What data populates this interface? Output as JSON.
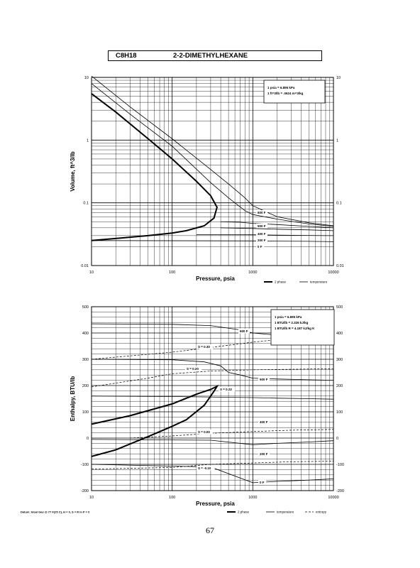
{
  "header": {
    "formula": "C8H18",
    "name": "2-2-DIMETHYLHEXANE"
  },
  "page_number": "67",
  "chart_data": [
    {
      "type": "line",
      "title": "",
      "xlabel": "Pressure,  psia",
      "ylabel": "Volume, ft^3/lb",
      "x_scale": "log",
      "y_scale": "log",
      "xlim": [
        10,
        10000
      ],
      "ylim": [
        0.01,
        10
      ],
      "grid": true,
      "x_ticks": [
        "10",
        "100",
        "1000",
        "10000"
      ],
      "y_ticks": [
        "10",
        "1",
        "0.1",
        "0.01"
      ],
      "y_ticks_right": [
        "10",
        "1",
        "0.1",
        "0.01"
      ],
      "conversion_box": [
        "1 psia  =  6.895 kPa",
        "1 ft^3/lb  =  .0624 m^3/kg"
      ],
      "legend": [
        "2 phase",
        "temperature"
      ],
      "series": [
        {
          "name": "2 phase",
          "kind": "two-phase",
          "x": [
            10,
            20,
            50,
            100,
            200,
            300,
            360,
            330,
            250,
            150,
            100,
            50,
            20,
            10
          ],
          "y": [
            5.5,
            2.8,
            1.06,
            0.5,
            0.22,
            0.13,
            0.085,
            0.057,
            0.043,
            0.036,
            0.033,
            0.03,
            0.027,
            0.025
          ]
        },
        {
          "name": "",
          "kind": "isotherm",
          "x": [
            10,
            30,
            100,
            300,
            500,
            800,
            1000,
            2000,
            5000,
            10000
          ],
          "y": [
            8,
            2.6,
            0.8,
            0.21,
            0.12,
            0.075,
            0.065,
            0.055,
            0.046,
            0.042
          ]
        },
        {
          "name": "600 F",
          "kind": "isotherm",
          "x": [
            10,
            30,
            100,
            300,
            500,
            800,
            1000,
            2000,
            5000,
            10000
          ],
          "y": [
            10.5,
            3.4,
            1.05,
            0.34,
            0.2,
            0.12,
            0.09,
            0.06,
            0.048,
            0.043
          ]
        },
        {
          "name": "500 F",
          "kind": "isotherm",
          "x": [
            400,
            700,
            1000,
            2000,
            5000,
            10000
          ],
          "y": [
            0.05,
            0.049,
            0.047,
            0.045,
            0.042,
            0.04
          ]
        },
        {
          "name": "400 F",
          "kind": "isotherm",
          "x": [
            400,
            1000,
            2000,
            5000,
            10000
          ],
          "y": [
            0.04,
            0.039,
            0.038,
            0.037,
            0.036
          ]
        },
        {
          "name": "200 F",
          "kind": "isotherm",
          "x": [
            200,
            1000,
            2000,
            5000,
            10000
          ],
          "y": [
            0.031,
            0.031,
            0.0305,
            0.0302,
            0.03
          ]
        },
        {
          "name": "0 F",
          "kind": "isotherm",
          "x": [
            10,
            1000,
            2000,
            5000,
            10000
          ],
          "y": [
            0.025,
            0.0247,
            0.0245,
            0.0243,
            0.024
          ]
        }
      ],
      "annotations": [
        "600 F",
        "500 F",
        "400 F",
        "200 F",
        "0 F"
      ]
    },
    {
      "type": "line",
      "title": "",
      "xlabel": "Pressure,  psia",
      "ylabel": "Enthalpy, BTU/lb",
      "x_scale": "log",
      "xlim": [
        10,
        10000
      ],
      "ylim": [
        -200,
        500
      ],
      "grid": true,
      "x_ticks": [
        "10",
        "100",
        "1000",
        "10000"
      ],
      "y_ticks": [
        "500",
        "400",
        "300",
        "200",
        "100",
        "0",
        "-100",
        "-200"
      ],
      "y_ticks_right": [
        "500",
        "400",
        "300",
        "200",
        "100",
        "0",
        "-100",
        "-200"
      ],
      "conversion_box": [
        "1 psia  =  6.895 kPa",
        "1 BTU/lb  =  2.326 kJ/kg",
        "1 BTU/lb R  =  4.187 kJ/kg K"
      ],
      "legend": [
        "2 phase",
        "temperature",
        "entropy"
      ],
      "footnote": "Datum: Ideal Gas @ 77 F(25 C),  H = 0,  S = R ln P = 0",
      "series": [
        {
          "name": "2 phase",
          "kind": "two-phase",
          "x": [
            10,
            30,
            100,
            200,
            300,
            360,
            330,
            250,
            150,
            100,
            50,
            20,
            10
          ],
          "y": [
            53,
            85,
            130,
            167,
            185,
            197,
            178,
            125,
            70,
            45,
            5,
            -45,
            -70
          ]
        },
        {
          "name": "600 F",
          "kind": "isotherm",
          "x": [
            10,
            100,
            300,
            700,
            1000,
            2000,
            5000,
            10000
          ],
          "y": [
            435,
            433,
            428,
            412,
            400,
            392,
            386,
            385
          ]
        },
        {
          "name": "500 F",
          "kind": "isotherm",
          "x": [
            10,
            100,
            250,
            400,
            500,
            700,
            1000,
            2000,
            5000,
            10000
          ],
          "y": [
            300,
            298,
            290,
            275,
            250,
            240,
            228,
            225,
            222,
            220
          ]
        },
        {
          "name": "400 F",
          "kind": "isotherm",
          "x": [
            10,
            100,
            1000,
            2000,
            5000,
            10000
          ],
          "y": [
            160,
            158,
            154,
            152,
            150,
            148
          ]
        },
        {
          "name": "200 F",
          "kind": "isotherm",
          "x": [
            10,
            300,
            1000,
            2000,
            5000,
            10000
          ],
          "y": [
            -5,
            -8,
            -25,
            -20,
            -15,
            -10
          ]
        },
        {
          "name": "0 F",
          "kind": "isotherm",
          "x": [
            10,
            300,
            1000,
            2000,
            5000,
            10000
          ],
          "y": [
            -100,
            -110,
            -170,
            -165,
            -160,
            -155
          ]
        },
        {
          "name": "S = 0.30",
          "kind": "entropy",
          "x": [
            10,
            100,
            300,
            1000,
            3000,
            10000
          ],
          "y": [
            300,
            327,
            345,
            365,
            380,
            395
          ]
        },
        {
          "name": "S = 0.20",
          "kind": "entropy",
          "x": [
            10,
            50,
            100,
            300,
            1000,
            3000,
            10000
          ],
          "y": [
            195,
            228,
            245,
            255,
            260,
            262,
            264
          ]
        },
        {
          "name": "S = 0.00",
          "kind": "entropy",
          "x": [
            30,
            100,
            300,
            1000,
            3000,
            10000
          ],
          "y": [
            0,
            8,
            18,
            25,
            30,
            33
          ]
        },
        {
          "name": "S = -0.10",
          "kind": "entropy",
          "x": [
            10,
            100,
            300,
            1000,
            3000,
            10000
          ],
          "y": [
            -118,
            -112,
            -100,
            -95,
            -90,
            -88
          ]
        }
      ],
      "annotations": [
        "600 F",
        "500 F",
        "400 F",
        "200 F",
        "0 F",
        "S = 0.30",
        "S = 0.20",
        "S = 0.22",
        "S = 0.00",
        "S = -0.10"
      ]
    }
  ]
}
